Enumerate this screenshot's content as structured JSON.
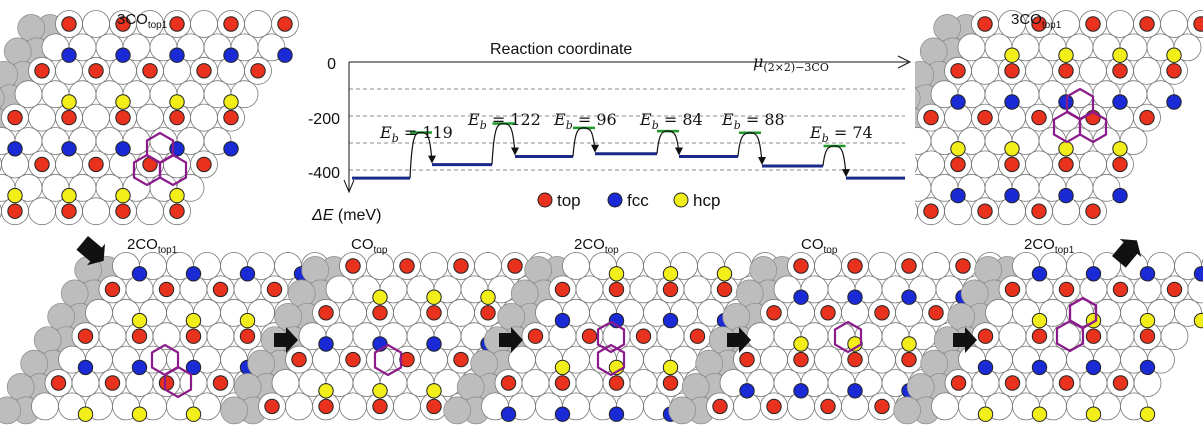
{
  "colors": {
    "top": "#e8321e",
    "fcc": "#1a2bd6",
    "hcp": "#f2ee1a",
    "ring": "#8b1a8b",
    "level": "#1a2a8a",
    "barrier": "#1f9a2a",
    "substrate_white": "#ffffff",
    "substrate_grey": "#bdbdbd"
  },
  "panels": [
    {
      "id": "p1",
      "main": "3CO",
      "sub": "top1"
    },
    {
      "id": "p2",
      "main": "2CO",
      "sub": "top1"
    },
    {
      "id": "p3",
      "main": "CO",
      "sub": "top"
    },
    {
      "id": "p4",
      "main": "2CO",
      "sub": "top"
    },
    {
      "id": "p5",
      "main": "CO",
      "sub": "top"
    },
    {
      "id": "p6",
      "main": "2CO",
      "sub": "top1"
    },
    {
      "id": "p7",
      "main": "3CO",
      "sub": "top1"
    }
  ],
  "energy_diagram": {
    "title": "Reaction coordinate",
    "ylabel_symbol": "ΔE",
    "ylabel_unit": "(meV)",
    "mu_symbol": "μ",
    "mu_subscript": "(2×2)−3CO",
    "yticks": [
      "0",
      "-200",
      "-400"
    ],
    "levels": [
      -430,
      -380,
      -350,
      -340,
      -350,
      -385,
      -430
    ],
    "barriers": [
      {
        "label": "E",
        "sub": "b",
        "rest": " = 119",
        "value": 119
      },
      {
        "label": "E",
        "sub": "b",
        "rest": " = 122",
        "value": 122
      },
      {
        "label": "E",
        "sub": "b",
        "rest": " = 96",
        "value": 96
      },
      {
        "label": "E",
        "sub": "b",
        "rest": " = 84",
        "value": 84
      },
      {
        "label": "E",
        "sub": "b",
        "rest": " = 88",
        "value": 88
      },
      {
        "label": "E",
        "sub": "b",
        "rest": " = 74",
        "value": 74
      }
    ]
  },
  "legend": [
    {
      "key": "top",
      "label": "top"
    },
    {
      "key": "fcc",
      "label": "fcc"
    },
    {
      "key": "hcp",
      "label": "hcp"
    }
  ]
}
